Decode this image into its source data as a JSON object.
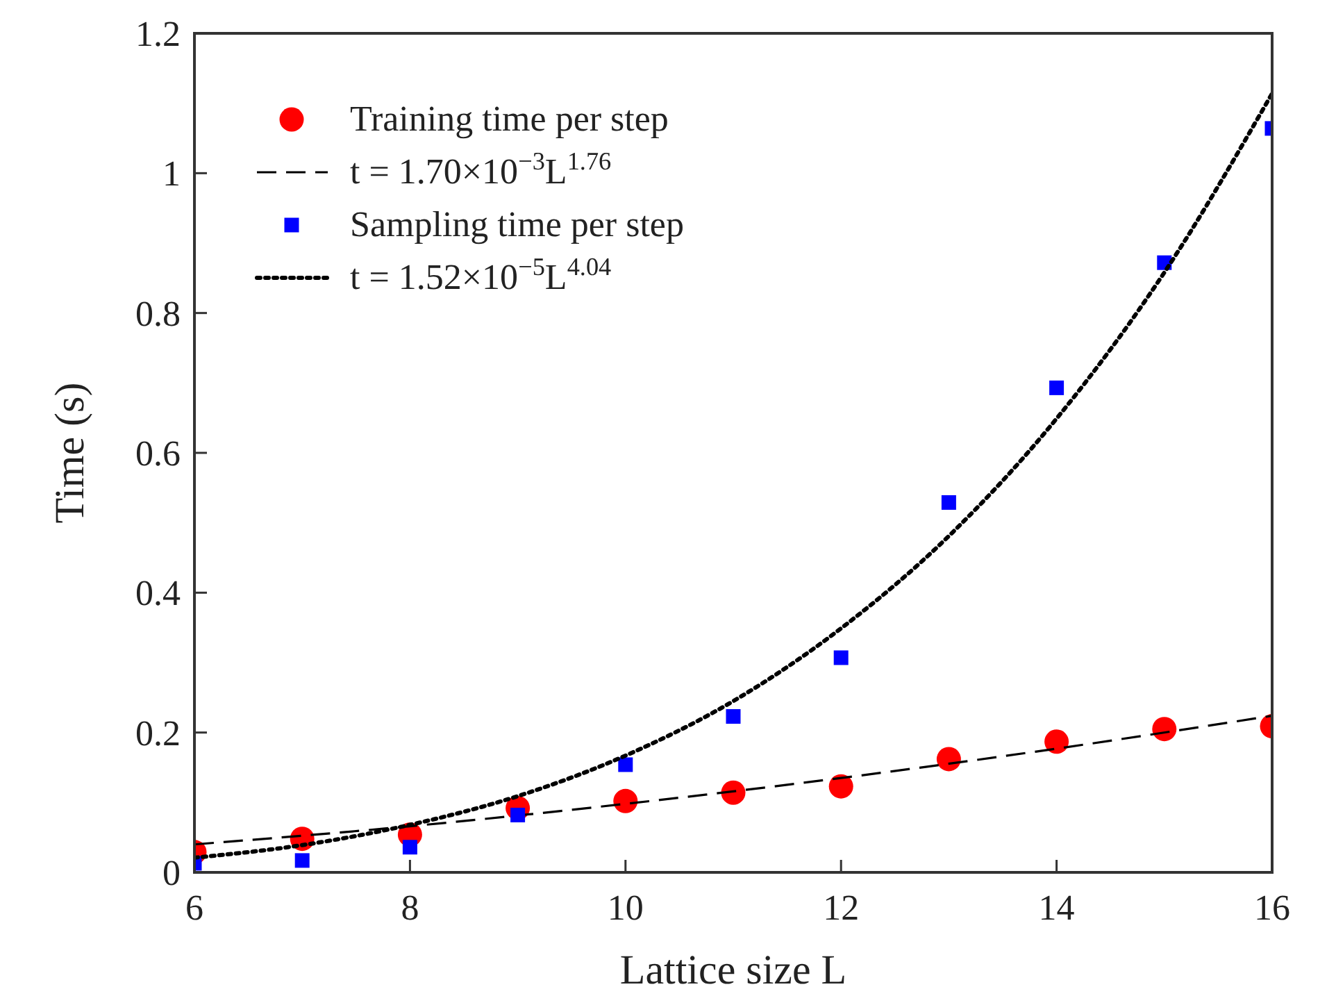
{
  "chart_data": {
    "type": "scatter",
    "xlabel": "Lattice size L",
    "ylabel": "Time (s)",
    "xlim": [
      6,
      16
    ],
    "xticks": [
      6,
      8,
      10,
      12,
      14,
      16
    ],
    "ylim": [
      0,
      1.2
    ],
    "yticks": [
      0,
      0.2,
      0.4,
      0.6,
      0.8,
      1,
      1.2
    ],
    "legend": "top left",
    "series": [
      {
        "name": "Training time per step",
        "marker": "circle",
        "color": "#ff0000",
        "x": [
          6,
          7,
          8,
          9,
          10,
          11,
          12,
          13,
          14,
          15,
          16
        ],
        "values": [
          0.029,
          0.048,
          0.054,
          0.092,
          0.102,
          0.114,
          0.123,
          0.162,
          0.187,
          0.205,
          0.209
        ]
      },
      {
        "name": "t = 1.70×10$^{−3}$L$^{1.76}$",
        "type": "line",
        "marker": "none",
        "line_style": "dashed",
        "color": "#000000",
        "x": [
          6,
          8,
          10,
          12,
          14,
          16
        ],
        "values": [
          0.04,
          0.066,
          0.098,
          0.135,
          0.177,
          0.224
        ]
      },
      {
        "name": "Sampling time per step",
        "marker": "square",
        "color": "#0000ff",
        "x": [
          6,
          7,
          8,
          9,
          10,
          11,
          12,
          13,
          14,
          15,
          16
        ],
        "values": [
          0.013,
          0.017,
          0.036,
          0.082,
          0.154,
          0.223,
          0.307,
          0.529,
          0.693,
          0.872,
          1.064
        ]
      },
      {
        "name": "t = 1.52×10$^{−5}$L$^{4.04}$",
        "type": "line",
        "marker": "none",
        "line_style": "dotted",
        "color": "#000000",
        "x": [
          6,
          7,
          8,
          9,
          10,
          11,
          12,
          13,
          14,
          15,
          16
        ],
        "values": [
          0.021,
          0.039,
          0.068,
          0.109,
          0.167,
          0.245,
          0.349,
          0.481,
          0.649,
          0.858,
          1.114
        ]
      }
    ]
  }
}
